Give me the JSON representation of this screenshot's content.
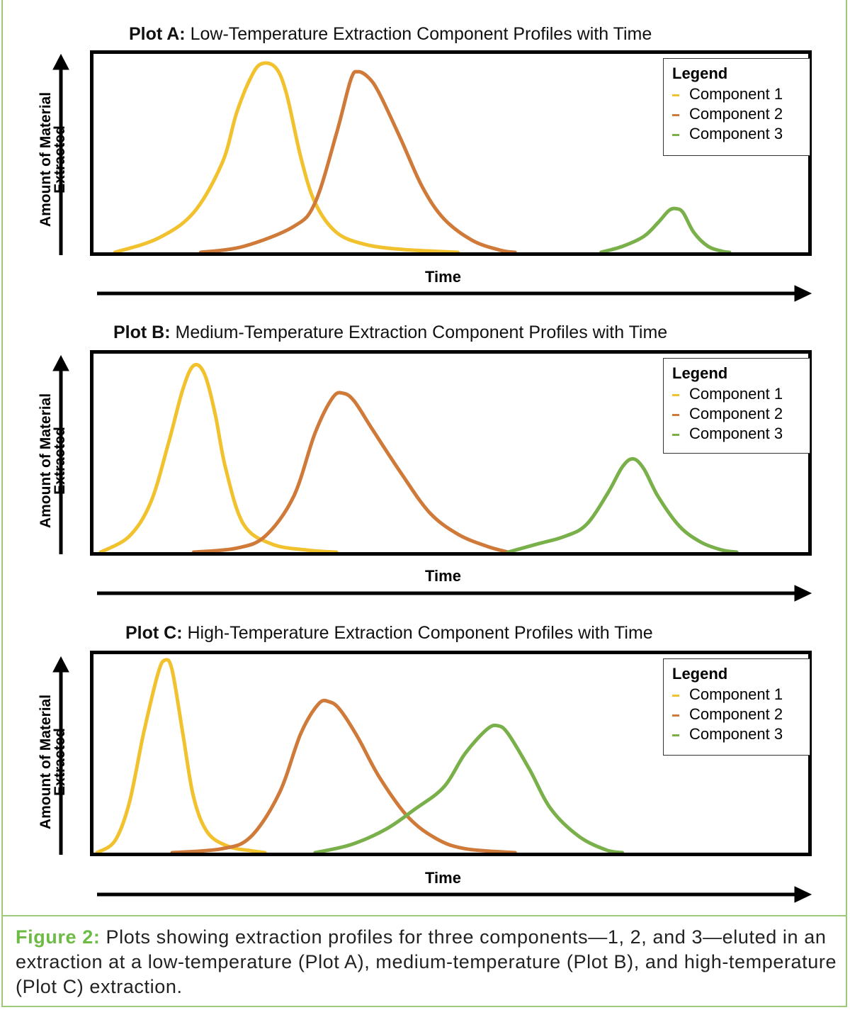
{
  "figure": {
    "caption_label": "Figure 2:",
    "caption_text": "Plots showing extraction profiles for three components—1, 2, and 3—eluted in an extraction at a low-temperature (Plot A), medium-temperature (Plot B), and high-temperature (Plot C) extraction.",
    "frame_color": "#9cc97a",
    "caption_label_color": "#6dbb45"
  },
  "chart_data": [
    {
      "type": "line",
      "title_bold": "Plot A:",
      "title": "Low-Temperature Extraction Component Profiles with Time",
      "xlabel": "Time",
      "ylabel_line1": "Amount of Material",
      "ylabel_line2": "Extracted",
      "legend_title": "Legend",
      "xlim": [
        0,
        100
      ],
      "ylim": [
        0,
        100
      ],
      "series": [
        {
          "name": "Component 1",
          "color": "#f2c12e",
          "x": [
            3,
            9,
            14,
            18,
            20,
            22,
            23.5,
            25.5,
            27,
            29,
            31,
            34,
            38,
            43,
            48,
            51
          ],
          "values": [
            0,
            7,
            20,
            45,
            70,
            88,
            95,
            93,
            80,
            48,
            25,
            10,
            4,
            1.5,
            0.5,
            0
          ]
        },
        {
          "name": "Component 2",
          "color": "#d07a3a",
          "x": [
            15,
            21,
            28,
            31,
            34,
            36,
            37,
            38.5,
            40,
            43,
            46,
            49,
            53,
            57,
            59
          ],
          "values": [
            0,
            3,
            13,
            25,
            60,
            87,
            91,
            88,
            80,
            57,
            33,
            17,
            6,
            1,
            0
          ]
        },
        {
          "name": "Component 3",
          "color": "#7ab04a",
          "x": [
            71,
            74,
            77,
            79,
            80.5,
            81.5,
            82.5,
            84,
            86,
            88,
            89
          ],
          "values": [
            0,
            3,
            8,
            15,
            21,
            22,
            20,
            10,
            3,
            0.5,
            0
          ]
        }
      ]
    },
    {
      "type": "line",
      "title_bold": "Plot B:",
      "title": "Medium-Temperature Extraction Component Profiles with Time",
      "xlabel": "Time",
      "ylabel_line1": "Amount of Material",
      "ylabel_line2": "Extracted",
      "legend_title": "Legend",
      "xlim": [
        0,
        100
      ],
      "ylim": [
        0,
        100
      ],
      "series": [
        {
          "name": "Component 1",
          "color": "#f2c12e",
          "x": [
            1,
            5,
            8,
            10.5,
            12.5,
            14,
            15.5,
            17,
            18.5,
            21,
            25,
            30,
            34
          ],
          "values": [
            0,
            8,
            25,
            55,
            82,
            94,
            90,
            70,
            42,
            14,
            4,
            1,
            0
          ]
        },
        {
          "name": "Component 2",
          "color": "#d07a3a",
          "x": [
            14,
            20,
            24,
            28,
            31,
            33.5,
            35,
            36.5,
            39,
            43,
            47,
            51,
            55,
            58
          ],
          "values": [
            0,
            2,
            8,
            28,
            60,
            78,
            80,
            76,
            62,
            40,
            20,
            9,
            3,
            0
          ]
        },
        {
          "name": "Component 3",
          "color": "#7ab04a",
          "x": [
            58,
            62,
            66,
            69,
            72,
            74,
            75.5,
            77,
            79,
            82,
            85,
            88,
            90
          ],
          "values": [
            0,
            4,
            8,
            14,
            30,
            43,
            47,
            42,
            28,
            13,
            5,
            1,
            0
          ]
        }
      ]
    },
    {
      "type": "line",
      "title_bold": "Plot C:",
      "title": "High-Temperature Extraction Component Profiles with Time",
      "xlabel": "Time",
      "ylabel_line1": "Amount of Material",
      "ylabel_line2": "Extracted",
      "legend_title": "Legend",
      "xlim": [
        0,
        100
      ],
      "ylim": [
        0,
        100
      ],
      "series": [
        {
          "name": "Component 1",
          "color": "#f2c12e",
          "x": [
            0.5,
            3,
            5,
            7,
            9,
            10,
            11,
            12.5,
            14,
            16,
            19,
            22,
            24
          ],
          "values": [
            0,
            6,
            25,
            60,
            90,
            97,
            92,
            60,
            28,
            10,
            3,
            1,
            0
          ]
        },
        {
          "name": "Component 2",
          "color": "#d07a3a",
          "x": [
            11,
            18,
            22,
            26,
            29,
            31.5,
            33,
            34.5,
            37,
            40,
            44,
            48,
            52,
            59
          ],
          "values": [
            0,
            2,
            8,
            30,
            60,
            75,
            76,
            72,
            58,
            38,
            18,
            7,
            2,
            0
          ]
        },
        {
          "name": "Component 3",
          "color": "#7ab04a",
          "x": [
            31,
            36,
            41,
            45,
            49,
            52,
            55,
            56.5,
            58,
            61,
            64,
            68,
            72,
            74
          ],
          "values": [
            0,
            4,
            12,
            22,
            33,
            50,
            62,
            64,
            60,
            42,
            22,
            8,
            1,
            0
          ]
        }
      ]
    }
  ]
}
